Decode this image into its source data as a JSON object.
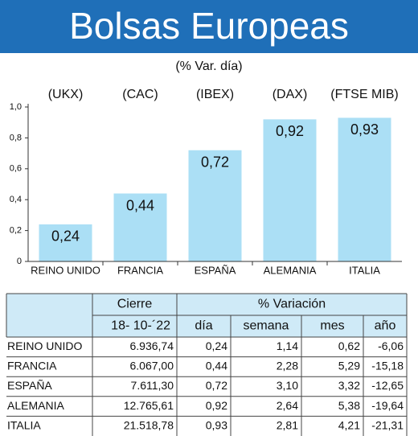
{
  "chart_data": {
    "type": "bar",
    "title": "Bolsas Europeas",
    "subtitle": "(% Var. día)",
    "categories": [
      "REINO UNIDO",
      "FRANCIA",
      "ESPAÑA",
      "ALEMANIA",
      "ITALIA"
    ],
    "index_labels": [
      "(UKX)",
      "(CAC)",
      "(IBEX)",
      "(DAX)",
      "(FTSE MIB)"
    ],
    "values": [
      0.24,
      0.44,
      0.72,
      0.92,
      0.93
    ],
    "value_labels": [
      "0,24",
      "0,44",
      "0,72",
      "0,92",
      "0,93"
    ],
    "color": "#abdff5",
    "ylim": [
      0,
      1
    ],
    "yticks": [
      0,
      {
        "value": 0.2,
        "label": "0,2"
      },
      {
        "value": 0.4,
        "label": "0,4"
      },
      {
        "value": 0.6,
        "label": "0,6"
      },
      {
        "value": 0.8,
        "label": "0,8"
      },
      {
        "value": 1.0,
        "label": "1,0"
      }
    ]
  },
  "table": {
    "group_headers": [
      "Cierre",
      "% Variación"
    ],
    "column_headers": [
      "18- 10-´22",
      "día",
      "semana",
      "mes",
      "año"
    ],
    "rows": [
      [
        "REINO UNIDO",
        "6.936,74",
        "0,24",
        "1,14",
        "0,62",
        "-6,06"
      ],
      [
        "FRANCIA",
        "6.067,00",
        "0,44",
        "2,28",
        "5,29",
        "-15,18"
      ],
      [
        "ESPAÑA",
        "7.611,30",
        "0,72",
        "3,10",
        "3,32",
        "-12,65"
      ],
      [
        "ALEMANIA",
        "12.765,61",
        "0,92",
        "2,64",
        "5,38",
        "-19,64"
      ],
      [
        "ITALIA",
        "21.518,78",
        "0,93",
        "2,81",
        "4,21",
        "-21,31"
      ]
    ]
  }
}
